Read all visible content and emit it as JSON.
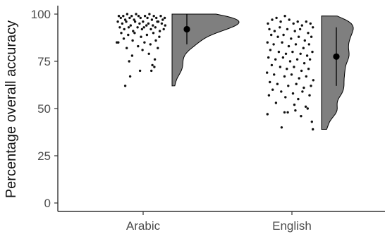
{
  "chart_data": {
    "type": "scatter",
    "subtype": "raincloud (jittered points + half-violin + mean with error bar)",
    "title": "",
    "xlabel": "",
    "ylabel": "Percentage overall accuracy",
    "categories": [
      "Arabic",
      "English"
    ],
    "ylim": [
      0,
      100
    ],
    "yticks": [
      0,
      25,
      50,
      75,
      100
    ],
    "grid": false,
    "legend": "none",
    "colors": {
      "violin_fill": "#7f7f7f",
      "points": "#111111",
      "axis": "#333333"
    },
    "groups": [
      {
        "category": "Arabic",
        "mean": 92,
        "error_range": [
          84,
          100
        ],
        "density_range": [
          62,
          100
        ],
        "density_mode": 97,
        "points": [
          {
            "x": 0.05,
            "y": 99
          },
          {
            "x": 0.09,
            "y": 98
          },
          {
            "x": 0.14,
            "y": 99
          },
          {
            "x": 0.18,
            "y": 97
          },
          {
            "x": 0.22,
            "y": 100
          },
          {
            "x": 0.27,
            "y": 98
          },
          {
            "x": 0.31,
            "y": 99
          },
          {
            "x": 0.36,
            "y": 97
          },
          {
            "x": 0.4,
            "y": 100
          },
          {
            "x": 0.45,
            "y": 99
          },
          {
            "x": 0.49,
            "y": 98
          },
          {
            "x": 0.54,
            "y": 96
          },
          {
            "x": 0.58,
            "y": 99
          },
          {
            "x": 0.63,
            "y": 98
          },
          {
            "x": 0.67,
            "y": 100
          },
          {
            "x": 0.72,
            "y": 97
          },
          {
            "x": 0.76,
            "y": 99
          },
          {
            "x": 0.81,
            "y": 98
          },
          {
            "x": 0.85,
            "y": 96
          },
          {
            "x": 0.9,
            "y": 99
          },
          {
            "x": 0.94,
            "y": 97
          },
          {
            "x": 0.98,
            "y": 98
          },
          {
            "x": 0.03,
            "y": 96
          },
          {
            "x": 0.12,
            "y": 95
          },
          {
            "x": 0.2,
            "y": 96
          },
          {
            "x": 0.29,
            "y": 94
          },
          {
            "x": 0.38,
            "y": 96
          },
          {
            "x": 0.47,
            "y": 95
          },
          {
            "x": 0.56,
            "y": 93
          },
          {
            "x": 0.65,
            "y": 95
          },
          {
            "x": 0.74,
            "y": 94
          },
          {
            "x": 0.83,
            "y": 96
          },
          {
            "x": 0.92,
            "y": 95
          },
          {
            "x": 0.99,
            "y": 94
          },
          {
            "x": 0.07,
            "y": 93
          },
          {
            "x": 0.16,
            "y": 92
          },
          {
            "x": 0.25,
            "y": 93
          },
          {
            "x": 0.34,
            "y": 91
          },
          {
            "x": 0.43,
            "y": 93
          },
          {
            "x": 0.52,
            "y": 92
          },
          {
            "x": 0.61,
            "y": 94
          },
          {
            "x": 0.7,
            "y": 92
          },
          {
            "x": 0.79,
            "y": 93
          },
          {
            "x": 0.88,
            "y": 91
          },
          {
            "x": 0.96,
            "y": 92
          },
          {
            "x": 0.1,
            "y": 90
          },
          {
            "x": 0.24,
            "y": 89
          },
          {
            "x": 0.37,
            "y": 90
          },
          {
            "x": 0.5,
            "y": 88
          },
          {
            "x": 0.62,
            "y": 89
          },
          {
            "x": 0.75,
            "y": 90
          },
          {
            "x": 0.87,
            "y": 88
          },
          {
            "x": 0.15,
            "y": 87
          },
          {
            "x": 0.33,
            "y": 86
          },
          {
            "x": 0.57,
            "y": 85
          },
          {
            "x": 0.8,
            "y": 86
          },
          {
            "x": 0.01,
            "y": 85
          },
          {
            "x": 0.04,
            "y": 85
          },
          {
            "x": 0.44,
            "y": 83
          },
          {
            "x": 0.69,
            "y": 84
          },
          {
            "x": 0.21,
            "y": 82
          },
          {
            "x": 0.53,
            "y": 81
          },
          {
            "x": 0.84,
            "y": 82
          },
          {
            "x": 0.66,
            "y": 79
          },
          {
            "x": 0.32,
            "y": 78
          },
          {
            "x": 0.78,
            "y": 76
          },
          {
            "x": 0.26,
            "y": 75
          },
          {
            "x": 0.73,
            "y": 73
          },
          {
            "x": 0.77,
            "y": 72
          },
          {
            "x": 0.71,
            "y": 70
          },
          {
            "x": 0.48,
            "y": 70
          },
          {
            "x": 0.28,
            "y": 67
          },
          {
            "x": 0.18,
            "y": 62
          }
        ]
      },
      {
        "category": "English",
        "mean": 77.5,
        "error_range": [
          62,
          93
        ],
        "density_range": [
          39,
          99
        ],
        "density_mode": 80,
        "points": [
          {
            "x": 0.03,
            "y": 95
          },
          {
            "x": 0.12,
            "y": 97
          },
          {
            "x": 0.21,
            "y": 98
          },
          {
            "x": 0.3,
            "y": 96
          },
          {
            "x": 0.39,
            "y": 99
          },
          {
            "x": 0.48,
            "y": 97
          },
          {
            "x": 0.57,
            "y": 95
          },
          {
            "x": 0.66,
            "y": 96
          },
          {
            "x": 0.75,
            "y": 94
          },
          {
            "x": 0.84,
            "y": 96
          },
          {
            "x": 0.93,
            "y": 95
          },
          {
            "x": 0.98,
            "y": 93
          },
          {
            "x": 0.06,
            "y": 92
          },
          {
            "x": 0.17,
            "y": 91
          },
          {
            "x": 0.28,
            "y": 93
          },
          {
            "x": 0.44,
            "y": 92
          },
          {
            "x": 0.6,
            "y": 91
          },
          {
            "x": 0.71,
            "y": 92
          },
          {
            "x": 0.88,
            "y": 90
          },
          {
            "x": 0.1,
            "y": 89
          },
          {
            "x": 0.24,
            "y": 88
          },
          {
            "x": 0.36,
            "y": 89
          },
          {
            "x": 0.52,
            "y": 87
          },
          {
            "x": 0.68,
            "y": 88
          },
          {
            "x": 0.81,
            "y": 86
          },
          {
            "x": 0.95,
            "y": 88
          },
          {
            "x": 0.02,
            "y": 85
          },
          {
            "x": 0.15,
            "y": 84
          },
          {
            "x": 0.33,
            "y": 85
          },
          {
            "x": 0.47,
            "y": 83
          },
          {
            "x": 0.62,
            "y": 84
          },
          {
            "x": 0.78,
            "y": 82
          },
          {
            "x": 0.9,
            "y": 84
          },
          {
            "x": 0.08,
            "y": 81
          },
          {
            "x": 0.26,
            "y": 80
          },
          {
            "x": 0.41,
            "y": 79
          },
          {
            "x": 0.55,
            "y": 80
          },
          {
            "x": 0.72,
            "y": 79
          },
          {
            "x": 0.86,
            "y": 78
          },
          {
            "x": 0.97,
            "y": 80
          },
          {
            "x": 0.04,
            "y": 77
          },
          {
            "x": 0.19,
            "y": 76
          },
          {
            "x": 0.35,
            "y": 77
          },
          {
            "x": 0.5,
            "y": 75
          },
          {
            "x": 0.65,
            "y": 76
          },
          {
            "x": 0.8,
            "y": 74
          },
          {
            "x": 0.92,
            "y": 76
          },
          {
            "x": 0.11,
            "y": 73
          },
          {
            "x": 0.29,
            "y": 72
          },
          {
            "x": 0.43,
            "y": 71
          },
          {
            "x": 0.58,
            "y": 72
          },
          {
            "x": 0.74,
            "y": 70
          },
          {
            "x": 0.89,
            "y": 71
          },
          {
            "x": 0.01,
            "y": 69
          },
          {
            "x": 0.16,
            "y": 68
          },
          {
            "x": 0.38,
            "y": 67
          },
          {
            "x": 0.53,
            "y": 68
          },
          {
            "x": 0.69,
            "y": 66
          },
          {
            "x": 0.84,
            "y": 67
          },
          {
            "x": 0.99,
            "y": 65
          },
          {
            "x": 0.07,
            "y": 64
          },
          {
            "x": 0.23,
            "y": 63
          },
          {
            "x": 0.46,
            "y": 62
          },
          {
            "x": 0.63,
            "y": 63
          },
          {
            "x": 0.79,
            "y": 61
          },
          {
            "x": 0.94,
            "y": 62
          },
          {
            "x": 0.13,
            "y": 60
          },
          {
            "x": 0.31,
            "y": 59
          },
          {
            "x": 0.56,
            "y": 58
          },
          {
            "x": 0.76,
            "y": 59
          },
          {
            "x": 0.05,
            "y": 57
          },
          {
            "x": 0.4,
            "y": 56
          },
          {
            "x": 0.67,
            "y": 55
          },
          {
            "x": 0.91,
            "y": 57
          },
          {
            "x": 0.2,
            "y": 53
          },
          {
            "x": 0.59,
            "y": 52
          },
          {
            "x": 0.83,
            "y": 51
          },
          {
            "x": 0.02,
            "y": 47
          },
          {
            "x": 0.38,
            "y": 48
          },
          {
            "x": 0.45,
            "y": 48
          },
          {
            "x": 0.61,
            "y": 49
          },
          {
            "x": 0.87,
            "y": 50
          },
          {
            "x": 0.73,
            "y": 46
          },
          {
            "x": 0.96,
            "y": 43
          },
          {
            "x": 0.32,
            "y": 40
          },
          {
            "x": 0.98,
            "y": 39
          }
        ]
      }
    ]
  }
}
